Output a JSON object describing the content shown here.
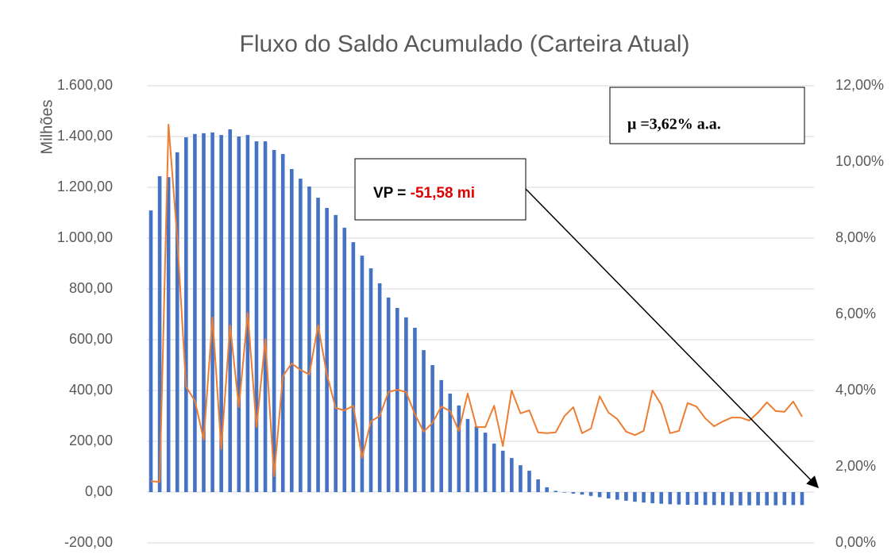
{
  "chart_data": {
    "type": "bar-line",
    "title": "Fluxo do Saldo Acumulado (Carteira Atual)",
    "y_label": "Milhões",
    "ylim": [
      -200,
      1600
    ],
    "yticks": [
      {
        "value": -200,
        "label": "-200,00"
      },
      {
        "value": 0,
        "label": "0,00"
      },
      {
        "value": 200,
        "label": "200,00"
      },
      {
        "value": 400,
        "label": "400,00"
      },
      {
        "value": 600,
        "label": "600,00"
      },
      {
        "value": 800,
        "label": "800,00"
      },
      {
        "value": 1000,
        "label": "1.000,00"
      },
      {
        "value": 1200,
        "label": "1.200,00"
      },
      {
        "value": 1400,
        "label": "1.400,00"
      },
      {
        "value": 1600,
        "label": "1.600,00"
      }
    ],
    "y2lim": [
      0,
      12
    ],
    "y2ticks": [
      {
        "value": 0,
        "label": "0,00%"
      },
      {
        "value": 2,
        "label": "2,00%"
      },
      {
        "value": 4,
        "label": "4,00%"
      },
      {
        "value": 6,
        "label": "6,00%"
      },
      {
        "value": 8,
        "label": "8,00%"
      },
      {
        "value": 10,
        "label": "10,00%"
      },
      {
        "value": 12,
        "label": "12,00%"
      }
    ],
    "grid": true,
    "series": [
      {
        "type": "bar",
        "color": "#4472c4",
        "values": [
          1109,
          1244,
          1240,
          1338,
          1397,
          1410,
          1413,
          1416,
          1406,
          1428,
          1400,
          1406,
          1381,
          1381,
          1347,
          1331,
          1272,
          1234,
          1203,
          1159,
          1119,
          1091,
          1041,
          984,
          931,
          881,
          822,
          766,
          725,
          688,
          647,
          559,
          500,
          441,
          388,
          341,
          288,
          259,
          234,
          191,
          163,
          134,
          106,
          84,
          50,
          19,
          5,
          -2,
          -6,
          -10,
          -15,
          -20,
          -25,
          -30,
          -34,
          -38,
          -41,
          -44,
          -46,
          -48,
          -49,
          -50,
          -50,
          -51,
          -51,
          -51,
          -52,
          -52,
          -52,
          -52,
          -52,
          -52,
          -51,
          -51,
          -51
        ]
      },
      {
        "type": "line",
        "axis": "y2",
        "color": "#ed7d31",
        "values": [
          1.62,
          1.6,
          10.98,
          8.0,
          4.1,
          3.73,
          2.71,
          5.92,
          2.46,
          5.71,
          3.56,
          6.04,
          3.04,
          5.35,
          1.75,
          4.38,
          4.71,
          4.54,
          4.42,
          5.71,
          4.42,
          3.54,
          3.48,
          3.6,
          2.23,
          3.19,
          3.33,
          3.96,
          4.02,
          3.96,
          3.38,
          2.92,
          3.15,
          3.58,
          3.46,
          2.94,
          3.92,
          3.04,
          3.04,
          3.6,
          2.54,
          4.0,
          3.4,
          3.48,
          2.9,
          2.88,
          2.9,
          3.33,
          3.56,
          2.88,
          3.0,
          3.85,
          3.42,
          3.25,
          2.92,
          2.83,
          2.94,
          4.0,
          3.63,
          2.88,
          2.94,
          3.67,
          3.58,
          3.27,
          3.06,
          3.19,
          3.29,
          3.29,
          3.21,
          3.42,
          3.69,
          3.46,
          3.44,
          3.71,
          3.31
        ]
      }
    ],
    "annotations": {
      "vp_label": "VP = ",
      "vp_value": "-51,58 mi",
      "mu": "μ =3,62% a.a."
    }
  }
}
